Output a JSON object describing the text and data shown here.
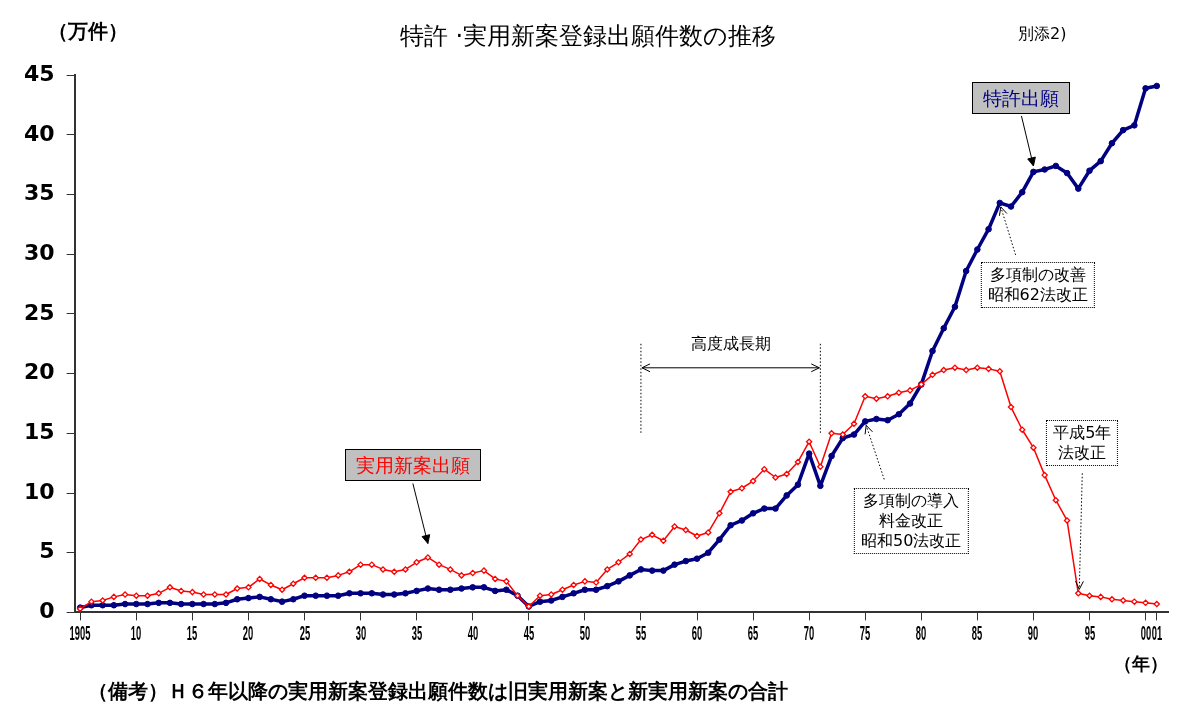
{
  "chart_data": {
    "type": "line",
    "title": "特許 ·実用新案登録出願件数の推移",
    "ylabel": "（万件）",
    "xlabel": "（年）",
    "x": [
      1905,
      1906,
      1907,
      1908,
      1909,
      1910,
      1911,
      1912,
      1913,
      1914,
      1915,
      1916,
      1917,
      1918,
      1919,
      1920,
      1921,
      1922,
      1923,
      1924,
      1925,
      1926,
      1927,
      1928,
      1929,
      1930,
      1931,
      1932,
      1933,
      1934,
      1935,
      1936,
      1937,
      1938,
      1939,
      1940,
      1941,
      1942,
      1943,
      1944,
      1945,
      1946,
      1947,
      1948,
      1949,
      1950,
      1951,
      1952,
      1953,
      1954,
      1955,
      1956,
      1957,
      1958,
      1959,
      1960,
      1961,
      1962,
      1963,
      1964,
      1965,
      1966,
      1967,
      1968,
      1969,
      1970,
      1971,
      1972,
      1973,
      1974,
      1975,
      1976,
      1977,
      1978,
      1979,
      1980,
      1981,
      1982,
      1983,
      1984,
      1985,
      1986,
      1987,
      1988,
      1989,
      1990,
      1991,
      1992,
      1993,
      1994,
      1995,
      1996,
      1997,
      1998,
      1999,
      2000,
      2001
    ],
    "series": [
      {
        "name": "特許出願",
        "color": "#000080",
        "marker": "circle",
        "values": [
          0.4,
          0.6,
          0.6,
          0.6,
          0.7,
          0.7,
          0.7,
          0.8,
          0.8,
          0.7,
          0.7,
          0.7,
          0.7,
          0.8,
          1.1,
          1.2,
          1.3,
          1.1,
          0.9,
          1.1,
          1.4,
          1.4,
          1.4,
          1.4,
          1.6,
          1.6,
          1.6,
          1.5,
          1.5,
          1.6,
          1.8,
          2.0,
          1.9,
          1.9,
          2.0,
          2.1,
          2.1,
          1.8,
          1.9,
          1.4,
          0.5,
          0.9,
          1.0,
          1.3,
          1.6,
          1.9,
          1.9,
          2.2,
          2.6,
          3.1,
          3.6,
          3.5,
          3.5,
          4.0,
          4.3,
          4.5,
          5.0,
          6.1,
          7.3,
          7.7,
          8.3,
          8.7,
          8.7,
          9.8,
          10.7,
          13.3,
          10.6,
          13.1,
          14.6,
          14.9,
          16.0,
          16.2,
          16.1,
          16.6,
          17.5,
          19.1,
          21.9,
          23.8,
          25.6,
          28.6,
          30.4,
          32.1,
          34.3,
          34.0,
          35.2,
          36.9,
          37.1,
          37.4,
          36.8,
          35.5,
          37.0,
          37.8,
          39.3,
          40.4,
          40.8,
          43.9,
          44.1
        ]
      },
      {
        "name": "実用新案出願",
        "color": "#ff0000",
        "marker": "diamond",
        "values": [
          0.3,
          0.9,
          1.0,
          1.3,
          1.5,
          1.4,
          1.4,
          1.6,
          2.1,
          1.8,
          1.7,
          1.5,
          1.5,
          1.5,
          2.0,
          2.1,
          2.8,
          2.3,
          1.9,
          2.4,
          2.9,
          2.9,
          2.9,
          3.1,
          3.4,
          4.0,
          4.0,
          3.6,
          3.4,
          3.6,
          4.2,
          4.6,
          4.0,
          3.6,
          3.1,
          3.3,
          3.5,
          2.8,
          2.6,
          1.4,
          0.5,
          1.4,
          1.5,
          1.9,
          2.3,
          2.6,
          2.5,
          3.6,
          4.2,
          4.9,
          6.1,
          6.5,
          6.0,
          7.2,
          6.9,
          6.4,
          6.7,
          8.3,
          10.1,
          10.4,
          11.0,
          12.0,
          11.3,
          11.6,
          12.6,
          14.3,
          12.2,
          15.0,
          14.9,
          15.8,
          18.1,
          17.9,
          18.1,
          18.4,
          18.6,
          19.1,
          19.9,
          20.3,
          20.5,
          20.3,
          20.5,
          20.4,
          20.2,
          17.2,
          15.3,
          13.8,
          11.5,
          9.4,
          7.7,
          1.6,
          1.4,
          1.3,
          1.1,
          1.0,
          0.9,
          0.8,
          0.7
        ]
      }
    ],
    "xlim": [
      1904.5,
      2002
    ],
    "xticks": [
      {
        "value": 1905,
        "label": "1905"
      },
      {
        "value": 1910,
        "label": "10"
      },
      {
        "value": 1915,
        "label": "15"
      },
      {
        "value": 1920,
        "label": "20"
      },
      {
        "value": 1925,
        "label": "25"
      },
      {
        "value": 1930,
        "label": "30"
      },
      {
        "value": 1935,
        "label": "35"
      },
      {
        "value": 1940,
        "label": "40"
      },
      {
        "value": 1945,
        "label": "45"
      },
      {
        "value": 1950,
        "label": "50"
      },
      {
        "value": 1955,
        "label": "55"
      },
      {
        "value": 1960,
        "label": "60"
      },
      {
        "value": 1965,
        "label": "65"
      },
      {
        "value": 1970,
        "label": "70"
      },
      {
        "value": 1975,
        "label": "75"
      },
      {
        "value": 1980,
        "label": "80"
      },
      {
        "value": 1985,
        "label": "85"
      },
      {
        "value": 1990,
        "label": "90"
      },
      {
        "value": 1995,
        "label": "95"
      },
      {
        "value": 2000,
        "label": "00"
      },
      {
        "value": 2001,
        "label": "01"
      }
    ],
    "ylim": [
      0,
      45
    ],
    "yticks": [
      0,
      5,
      10,
      15,
      20,
      25,
      30,
      35,
      40,
      45
    ],
    "grid": false,
    "legend": false,
    "ref_lines": [
      {
        "axis": "x",
        "value": 1955,
        "line_style": "dotted"
      },
      {
        "axis": "x",
        "value": 1971,
        "line_style": "dotted"
      }
    ],
    "annotations": [
      {
        "text": "多項制の改善昭和62法改正",
        "x": 1987,
        "y": 34.3
      },
      {
        "text": "多項制の導入料金改正昭和50法改正",
        "x": 1975,
        "y": 16.0
      },
      {
        "text": "平成5年法改正",
        "x": 1994,
        "y": 1.6
      },
      "（備考）Ｈ６年以降の実用新案登録出願件数は旧実用新案と新実用新案の合計",
      "別添2)",
      "高度成長期"
    ]
  }
}
